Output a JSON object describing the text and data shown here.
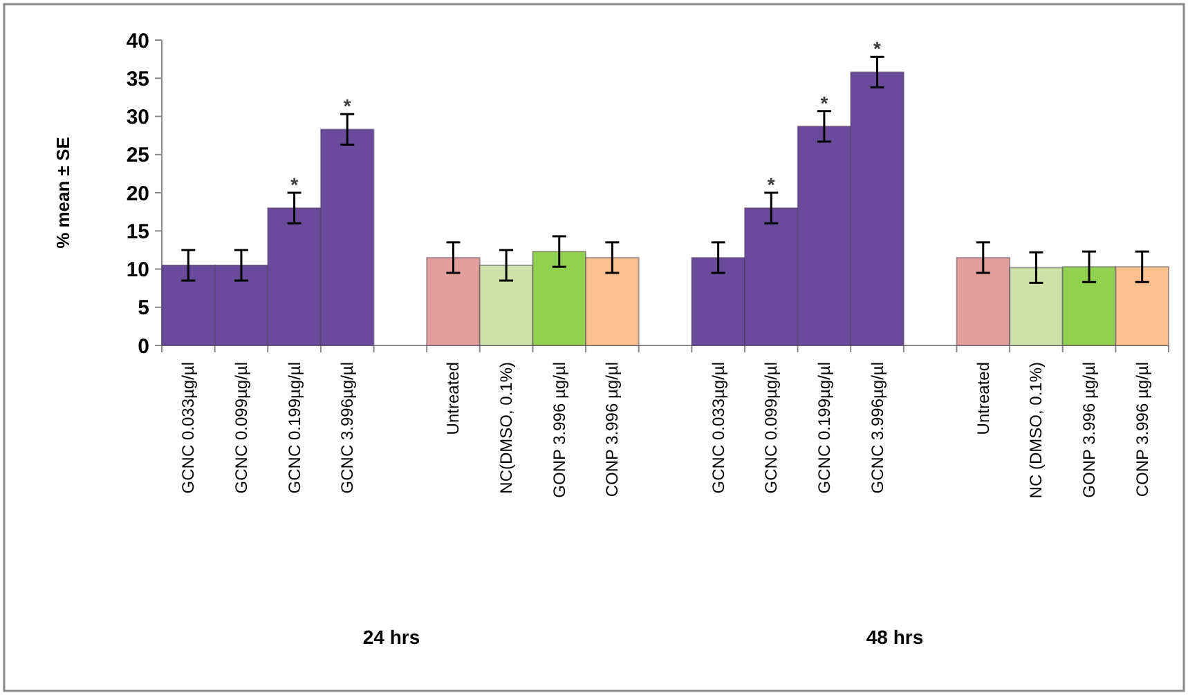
{
  "chart_data": {
    "type": "bar",
    "ylabel": "% mean ± SE",
    "categories": [
      "GCNC 0.033µg/µl",
      "GCNC 0.099µg/µl",
      "GCNC 0.199µg/µl",
      "GCNC 3.996µg/µl",
      null,
      "Untreated",
      "NC(DMSO, 0.1%)",
      "GONP 3.996 µg/µl",
      "CONP 3.996 µg/µl",
      null,
      "GCNC 0.033µg/µl",
      "GCNC 0.099µg/µl",
      "GCNC 0.199µg/µl",
      "GCNC 3.996µg/µl",
      null,
      "Untreated",
      "NC (DMSO, 0.1%)",
      "GONP 3.996 µg/µl",
      "CONP 3.996 µg/µl"
    ],
    "values": [
      10.5,
      10.5,
      18,
      28.3,
      null,
      11.5,
      10.5,
      12.3,
      11.5,
      null,
      11.5,
      18,
      28.7,
      35.8,
      null,
      11.5,
      10.2,
      10.3,
      10.3
    ],
    "errors": [
      2,
      2,
      2,
      2,
      null,
      2,
      2,
      2,
      2,
      null,
      2,
      2,
      2,
      2,
      null,
      2,
      2,
      2,
      2
    ],
    "colors": [
      "#6a4a9a",
      "#6a4a9a",
      "#6a4a9a",
      "#6a4a9a",
      null,
      "#e39f9c",
      "#cfe0a8",
      "#92d050",
      "#fac090",
      null,
      "#6a4a9a",
      "#6a4a9a",
      "#6a4a9a",
      "#6a4a9a",
      null,
      "#e39f9c",
      "#cfe0a8",
      "#92d050",
      "#fac090"
    ],
    "value_labels": [
      null,
      null,
      "*",
      "*",
      null,
      null,
      null,
      null,
      null,
      null,
      null,
      "*",
      "*",
      "*",
      null,
      null,
      null,
      null,
      null
    ],
    "ylim": [
      0,
      40
    ],
    "yticks": [
      0,
      5,
      10,
      15,
      20,
      25,
      30,
      35,
      40
    ],
    "grid": false,
    "annotations": [
      "24 hrs",
      "48 hrs"
    ]
  }
}
